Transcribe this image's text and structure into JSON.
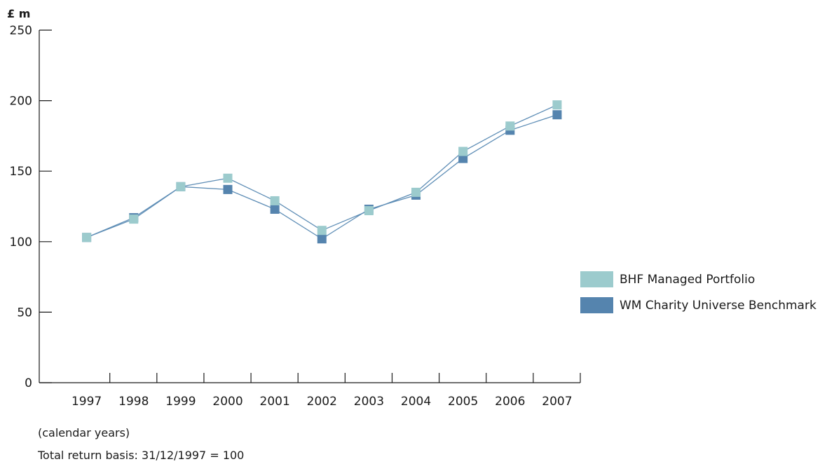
{
  "chart_data": {
    "type": "line",
    "y_unit": "£ m",
    "ylim": [
      0,
      250
    ],
    "yticks": [
      0,
      50,
      100,
      150,
      200,
      250
    ],
    "categories": [
      "1997",
      "1998",
      "1999",
      "2000",
      "2001",
      "2002",
      "2003",
      "2004",
      "2005",
      "2006",
      "2007"
    ],
    "series": [
      {
        "name": "BHF Managed Portfolio",
        "color": "#9ccbcd",
        "values": [
          103,
          116,
          139,
          145,
          129,
          108,
          122,
          135,
          164,
          182,
          197
        ]
      },
      {
        "name": "WM Charity Universe Benchmark",
        "color": "#5584ae",
        "values": [
          103,
          117,
          139,
          137,
          123,
          102,
          123,
          133,
          159,
          179,
          190
        ]
      }
    ],
    "line_color": "#5f8eb6",
    "legend_position": "right",
    "grid": false,
    "notes": [
      "(calendar years)",
      "Total return basis: 31/12/1997 = 100"
    ]
  }
}
